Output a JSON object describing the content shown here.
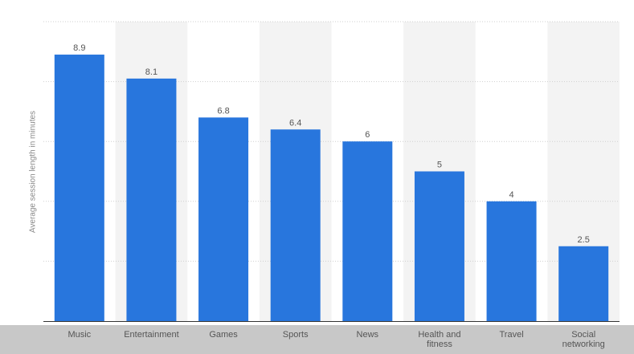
{
  "chart_data": {
    "type": "bar",
    "title": "",
    "xlabel": "",
    "ylabel": "Average session length in minutes",
    "categories": [
      "Music",
      "Entertainment",
      "Games",
      "Sports",
      "News",
      "Health and fitness",
      "Travel",
      "Social networking"
    ],
    "values": [
      8.9,
      8.1,
      6.8,
      6.4,
      6,
      5,
      4,
      2.5
    ],
    "value_labels": [
      "8.9",
      "8.1",
      "6.8",
      "6.4",
      "6",
      "5",
      "4",
      "2.5"
    ],
    "ylim": [
      0,
      10
    ],
    "y_gridlines": [
      0,
      2,
      4,
      6,
      8,
      10
    ],
    "grid": true,
    "legend": "none",
    "colors": {
      "bar": "#2876dd",
      "band_shade": "#f3f3f3",
      "grid": "#cfcfcf",
      "axis": "#333333",
      "label": "#555555"
    }
  }
}
